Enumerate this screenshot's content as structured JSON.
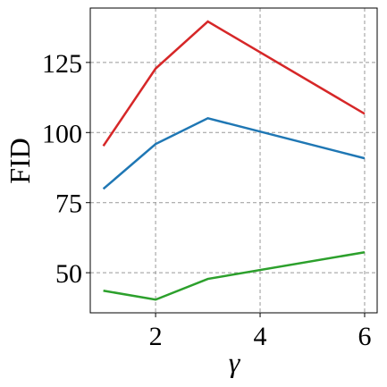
{
  "chart_data": {
    "type": "line",
    "x_label": "γ",
    "y_label": "FID",
    "x": [
      1,
      2,
      3,
      6
    ],
    "series": [
      {
        "color": "#d62728",
        "values": [
          95.2,
          122.8,
          139.6,
          106.7
        ]
      },
      {
        "color": "#1f77b4",
        "values": [
          79.9,
          95.9,
          105.1,
          90.8
        ]
      },
      {
        "color": "#2ca02c",
        "values": [
          43.6,
          40.4,
          47.8,
          57.3
        ]
      }
    ],
    "xlim": [
      0.75,
      6.24
    ],
    "xticks": [
      2,
      4,
      6
    ],
    "ylim": [
      35.7,
      144.4
    ],
    "yticks": [
      50,
      75,
      100,
      125
    ],
    "grid": true
  }
}
